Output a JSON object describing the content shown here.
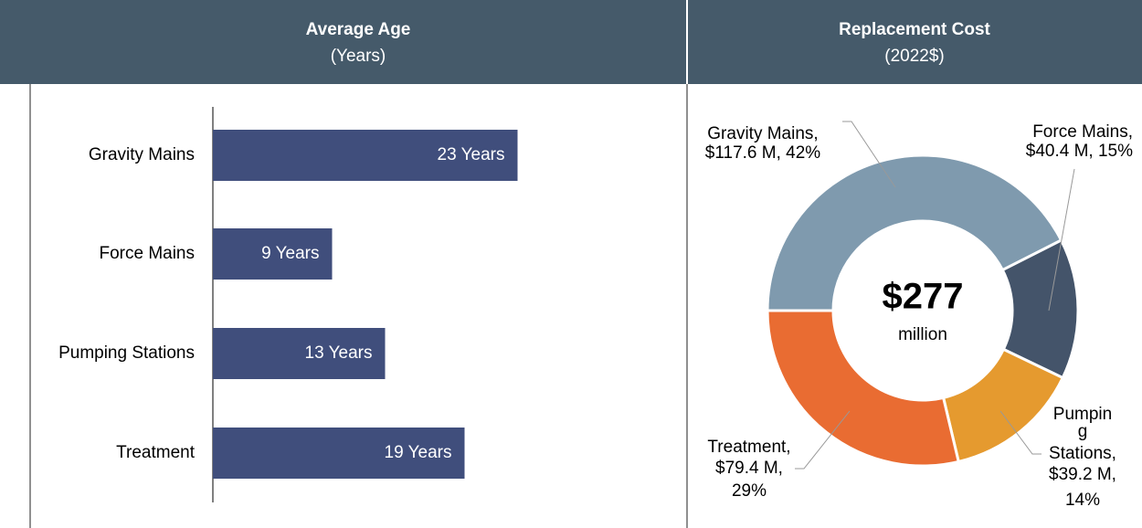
{
  "chart_data": [
    {
      "type": "hbar",
      "title": "Average Age",
      "subtitle": "(Years)",
      "categories": [
        "Gravity Mains",
        "Force Mains",
        "Pumping Stations",
        "Treatment"
      ],
      "values": [
        23,
        9,
        13,
        19
      ],
      "value_labels": [
        "23 Years",
        "9 Years",
        "13 Years",
        "19 Years"
      ],
      "color": "#404e7c"
    },
    {
      "type": "donut",
      "title": "Replacement Cost",
      "subtitle": "(2022$)",
      "values": [
        117.6,
        40.4,
        39.2,
        79.4
      ],
      "value_labels": [
        [
          "Gravity Mains,",
          "$117.6 M, 42%"
        ],
        [
          "Force Mains,",
          "$40.4 M, 15%"
        ],
        [
          "Pumpin",
          "g",
          "Stations,",
          "$39.2 M,",
          "14%"
        ],
        [
          "Treatment,",
          "$79.4 M,",
          "29%"
        ]
      ],
      "colors": [
        "#7f9aae",
        "#44546a",
        "#e59a2f",
        "#e96c32"
      ],
      "center_label": "$277",
      "center_sublabel": "million"
    }
  ]
}
